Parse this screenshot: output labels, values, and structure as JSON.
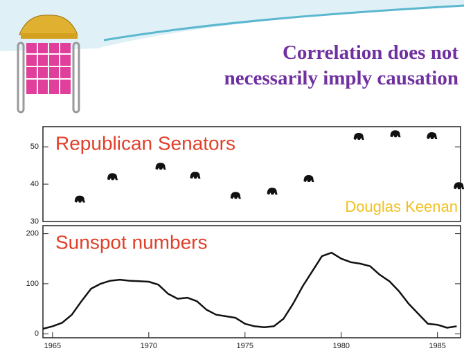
{
  "slide_title": [
    "Correlation does not",
    "necessarily imply causation"
  ],
  "chart_data": [
    {
      "type": "scatter",
      "title": "Republican Senators",
      "annotation": "Douglas Keenan",
      "color": "#111111",
      "x": [
        1966.4,
        1968.1,
        1970.6,
        1972.4,
        1974.5,
        1976.4,
        1978.3,
        1980.9,
        1982.8,
        1984.7,
        1986.1
      ],
      "values": [
        36,
        42,
        44.8,
        42.4,
        37,
        38.1,
        41.5,
        52.8,
        53.5,
        53,
        39.6
      ],
      "xlim": [
        1964.5,
        1986.2
      ],
      "ylim": [
        30,
        55.4
      ],
      "yticks": [
        30,
        40,
        50
      ]
    },
    {
      "type": "line",
      "title": "Sunspot numbers",
      "color": "#111111",
      "x": [
        1964.5,
        1965,
        1965.5,
        1966,
        1966.5,
        1967,
        1967.5,
        1968,
        1968.5,
        1969,
        1969.5,
        1970,
        1970.5,
        1971,
        1971.5,
        1972,
        1972.5,
        1973,
        1973.5,
        1974,
        1974.5,
        1975,
        1975.5,
        1976,
        1976.5,
        1977,
        1977.5,
        1978,
        1978.5,
        1979,
        1979.5,
        1980,
        1980.5,
        1981,
        1981.5,
        1982,
        1982.5,
        1983,
        1983.5,
        1984,
        1984.5,
        1985,
        1985.5,
        1986
      ],
      "values": [
        10,
        15,
        22,
        38,
        65,
        90,
        100,
        106,
        108,
        106,
        105,
        104,
        98,
        80,
        70,
        72,
        65,
        48,
        38,
        35,
        32,
        20,
        15,
        13,
        15,
        30,
        60,
        95,
        125,
        155,
        162,
        150,
        143,
        140,
        135,
        118,
        105,
        85,
        60,
        40,
        20,
        18,
        12,
        15
      ],
      "xlim": [
        1964.5,
        1986.2
      ],
      "ylim": [
        -8,
        216
      ],
      "yticks": [
        0,
        100,
        200
      ],
      "xticks": [
        1965,
        1970,
        1975,
        1980,
        1985
      ]
    }
  ]
}
